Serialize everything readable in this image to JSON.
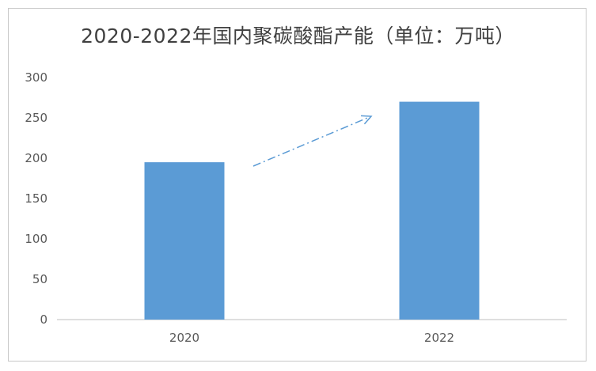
{
  "chart_data": {
    "type": "bar",
    "title": "2020-2022年国内聚碳酸酯产能（单位：万吨）",
    "categories": [
      "2020",
      "2022"
    ],
    "values": [
      195,
      270
    ],
    "ylim": [
      0,
      300
    ],
    "yticks": [
      0,
      50,
      100,
      150,
      200,
      250,
      300
    ],
    "grid": false,
    "bar_color": "#5b9bd5",
    "annotation": "dash-dot trend arrow pointing up from 2020 bar toward 2022 bar",
    "annotation_color": "#5b9bd5"
  }
}
